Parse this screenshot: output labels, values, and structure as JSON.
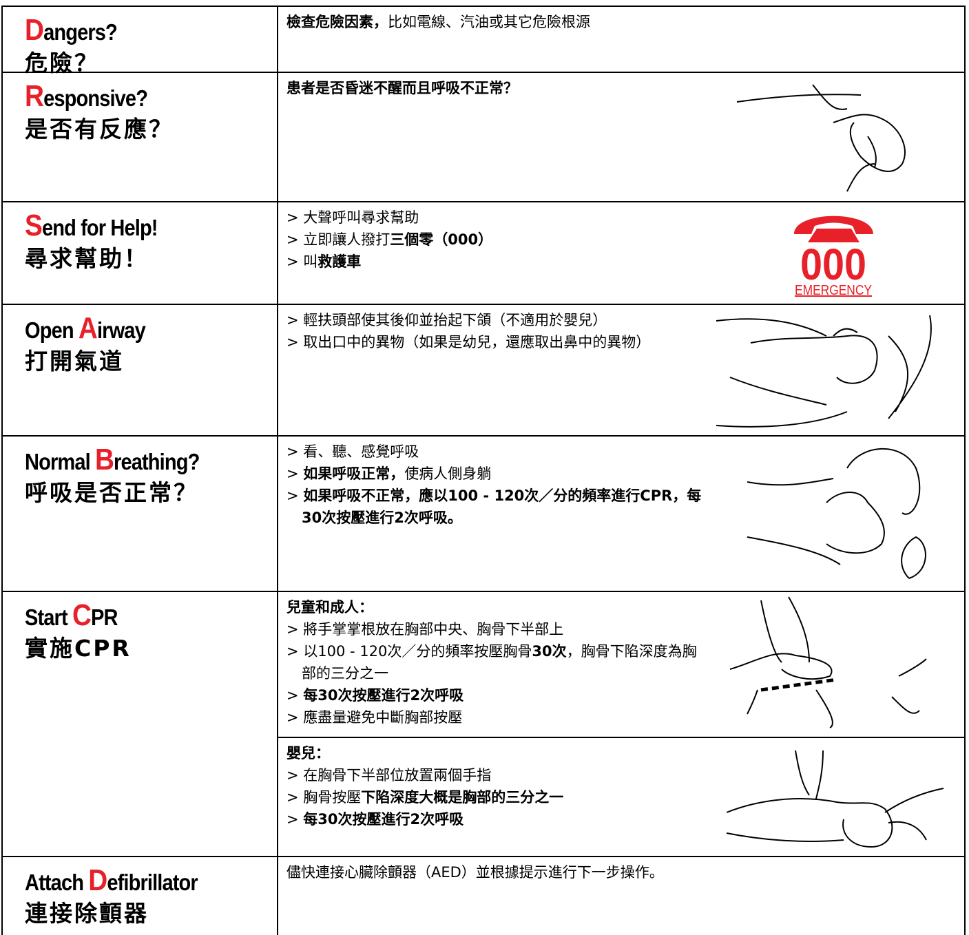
{
  "rows": [
    {
      "title_en": {
        "letter": "D",
        "rest": "angers?"
      },
      "title_zh": "危險？",
      "blocks": [
        {
          "lines": [
            [
              {
                "text": "檢查危險因素，",
                "bold": true
              },
              {
                "text": "比如電線、汽油或其它危險根源"
              }
            ]
          ]
        }
      ]
    },
    {
      "title_en": {
        "letter": "R",
        "rest": "esponsive?"
      },
      "title_zh": "是否有反應？",
      "blocks": [
        {
          "lines": [
            [
              {
                "text": "患者是否昏迷不醒而且呼吸不正常？",
                "bold": true
              }
            ]
          ]
        }
      ]
    },
    {
      "title_en": {
        "letter": "S",
        "rest": "end for Help!"
      },
      "title_zh": "尋求幫助！",
      "blocks": [
        {
          "lines": [
            [
              {
                "text": "> 大聲呼叫尋求幫助"
              }
            ],
            [
              {
                "text": "> 立即讓人撥打"
              },
              {
                "text": "三個零（000）",
                "bold": true
              }
            ],
            [
              {
                "text": "> 叫"
              },
              {
                "text": "救護車",
                "bold": true
              }
            ]
          ]
        }
      ],
      "icon": {
        "number": "000",
        "label": "EMERGENCY"
      }
    },
    {
      "title_en": {
        "prefix": "Open ",
        "letter": "A",
        "rest": "irway"
      },
      "title_zh": "打開氣道",
      "blocks": [
        {
          "lines": [
            [
              {
                "text": "> 輕扶頭部使其後仰並抬起下頜（不適用於嬰兒）"
              }
            ],
            [
              {
                "text": "> 取出口中的異物（如果是幼兒，還應取出鼻中的異物）"
              }
            ]
          ]
        }
      ]
    },
    {
      "title_en": {
        "prefix": "Normal ",
        "letter": "B",
        "rest": "reathing?"
      },
      "title_zh": "呼吸是否正常？",
      "blocks": [
        {
          "lines": [
            [
              {
                "text": "> 看、聽、感覺呼吸"
              }
            ],
            [
              {
                "text": "> "
              },
              {
                "text": "如果呼吸正常，",
                "bold": true
              },
              {
                "text": "使病人側身躺"
              }
            ],
            [
              {
                "text": "> "
              },
              {
                "text": "如果呼吸不正常，應以100 - 120次／分的頻率進行CPR，每30次按壓進行2次呼吸。",
                "bold": true
              }
            ]
          ]
        }
      ]
    },
    {
      "title_en": {
        "prefix": "Start ",
        "letter": "C",
        "rest": "PR"
      },
      "title_zh": "實施CPR",
      "blocks": [
        {
          "heading": "兒童和成人：",
          "lines": [
            [
              {
                "text": "> 將手掌掌根放在胸部中央、胸骨下半部上"
              }
            ],
            [
              {
                "text": "> 以100 - 120次／分的頻率按壓胸骨"
              },
              {
                "text": "30次",
                "bold": true
              },
              {
                "text": "，胸骨下陷深度為胸部的三分之一"
              }
            ],
            [
              {
                "text": "> "
              },
              {
                "text": "每30次按壓進行2次呼吸",
                "bold": true
              }
            ],
            [
              {
                "text": "> 應盡量避免中斷胸部按壓"
              }
            ]
          ]
        },
        {
          "heading": "嬰兒：",
          "lines": [
            [
              {
                "text": "> 在胸骨下半部位放置兩個手指"
              }
            ],
            [
              {
                "text": "> 胸骨按壓"
              },
              {
                "text": "下陷深度大概是胸部的三分之一",
                "bold": true
              }
            ],
            [
              {
                "text": "> "
              },
              {
                "text": "每30次按壓進行2次呼吸",
                "bold": true
              }
            ]
          ]
        }
      ]
    },
    {
      "title_en": {
        "prefix": "Attach ",
        "letter": "D",
        "rest": "efibrillator"
      },
      "title_zh": "連接除顫器",
      "blocks": [
        {
          "lines": [
            [
              {
                "text": "儘快連接心臟除顫器（AED）並根據提示進行下一步操作。"
              }
            ]
          ]
        }
      ]
    }
  ]
}
